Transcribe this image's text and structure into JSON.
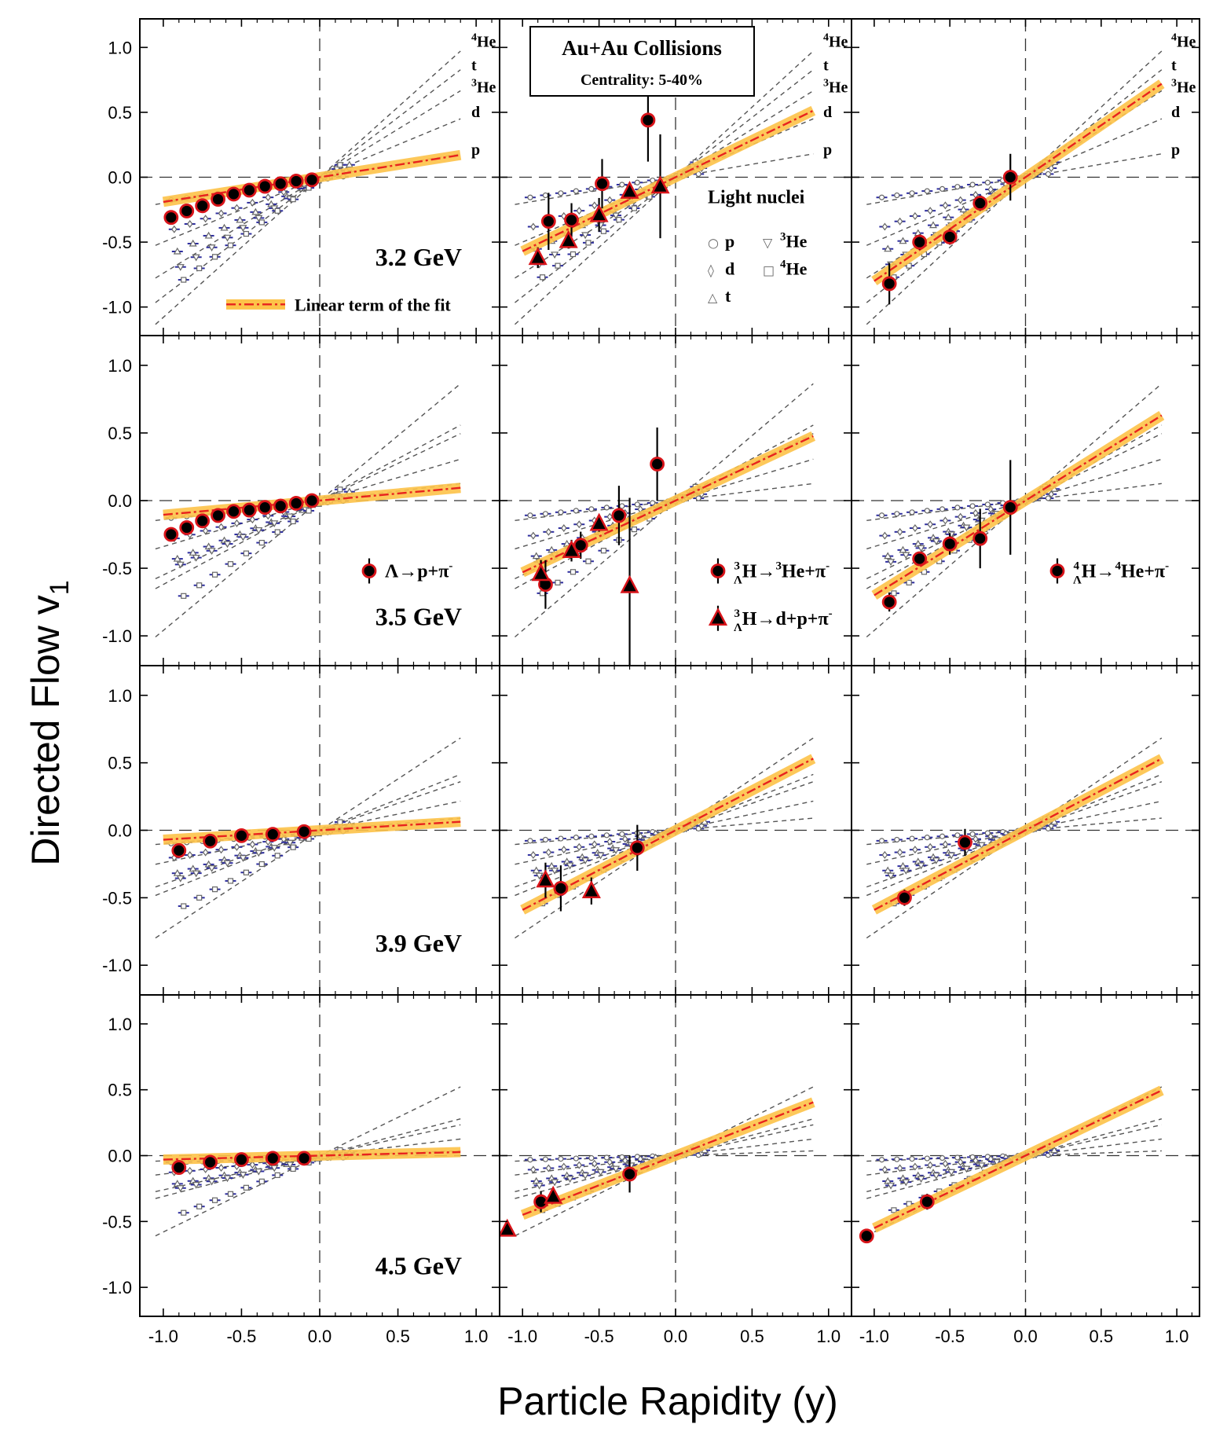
{
  "chart_data": {
    "type": "scatter",
    "xlabel": "Particle Rapidity (y)",
    "ylabel": "Directed Flow v",
    "ylabel_sub": "1",
    "xlim": [
      -1.15,
      1.15
    ],
    "ylim": [
      -1.22,
      1.22
    ],
    "x_ticks": [
      -1.0,
      -0.5,
      0.0,
      0.5,
      1.0
    ],
    "y_ticks": [
      1.0,
      0.5,
      0.0,
      -0.5,
      -1.0
    ],
    "x_tick_labels": [
      "-1.0",
      "-0.5",
      "0.0",
      "0.5",
      "1.0"
    ],
    "y_tick_labels": [
      "1.0",
      "0.5",
      "0.0",
      "-0.5",
      "-1.0"
    ],
    "header_box": {
      "title": "Au+Au Collisions",
      "subtitle": "Centrality: 5-40%"
    },
    "light_nuclei_legend": {
      "title": "Light nuclei",
      "entries": [
        {
          "symbol": "○",
          "label": "p"
        },
        {
          "symbol": "◊",
          "label": "d"
        },
        {
          "symbol": "△",
          "label": "t"
        },
        {
          "symbol": "▽",
          "label": "3He",
          "sup": "3",
          "base": "He"
        },
        {
          "symbol": "□",
          "label": "4He",
          "sup": "4",
          "base": "He"
        }
      ]
    },
    "fit_legend": "Linear term of the fit",
    "nuclei_line_labels": [
      "4He",
      "t",
      "3He",
      "d",
      "p"
    ],
    "channel_labels": [
      {
        "text": "Λ→p+π-",
        "marker": "circle"
      },
      {
        "text": "3ΛH→3He+π-",
        "marker": "circle"
      },
      {
        "text": "3ΛH→d+p+π-",
        "marker": "triangle"
      },
      {
        "text": "4ΛH→4He+π-",
        "marker": "circle"
      }
    ],
    "energies": [
      "3.2 GeV",
      "3.5 GeV",
      "3.9 GeV",
      "4.5 GeV"
    ],
    "colors": {
      "fit_band": "#fdc349",
      "fit_line": "#e8231e",
      "marker_edge": "#d9141a",
      "marker_fill": "#000000",
      "nuclei_line": "#555555",
      "nuclei_marker": "#2e2e9e"
    },
    "panels": [
      {
        "row": 0,
        "col": 0,
        "energy": "3.2 GeV",
        "fit_slope": 0.19,
        "light_nuclei_slopes": [
          0.2,
          0.5,
          0.74,
          0.92,
          1.08
        ],
        "series": [
          {
            "name": "Λ→p+π-",
            "marker": "circle",
            "points": [
              [
                -0.95,
                -0.31
              ],
              [
                -0.85,
                -0.26
              ],
              [
                -0.75,
                -0.22
              ],
              [
                -0.65,
                -0.17
              ],
              [
                -0.55,
                -0.13
              ],
              [
                -0.45,
                -0.1
              ],
              [
                -0.35,
                -0.07
              ],
              [
                -0.25,
                -0.05
              ],
              [
                -0.15,
                -0.03
              ],
              [
                -0.05,
                -0.02
              ]
            ],
            "errors": [
              0.02,
              0.02,
              0.02,
              0.02,
              0.02,
              0.02,
              0.02,
              0.02,
              0.02,
              0.05
            ]
          }
        ]
      },
      {
        "row": 0,
        "col": 1,
        "energy": "3.2 GeV",
        "fit_slope": 0.57,
        "light_nuclei_slopes": [
          0.2,
          0.5,
          0.74,
          0.92,
          1.08
        ],
        "series": [
          {
            "name": "3ΛH→3He+π-",
            "marker": "circle",
            "points": [
              [
                -0.83,
                -0.34
              ],
              [
                -0.68,
                -0.33
              ],
              [
                -0.48,
                -0.05
              ],
              [
                -0.18,
                0.44
              ]
            ],
            "errors": [
              0.22,
              0.13,
              0.19,
              0.32
            ]
          },
          {
            "name": "3ΛH→d+p+π-",
            "marker": "triangle",
            "points": [
              [
                -0.9,
                -0.62
              ],
              [
                -0.7,
                -0.49
              ],
              [
                -0.5,
                -0.29
              ],
              [
                -0.3,
                -0.11
              ],
              [
                -0.1,
                -0.07
              ]
            ],
            "errors": [
              0.08,
              0.06,
              0.13,
              0.06,
              0.4
            ]
          }
        ]
      },
      {
        "row": 0,
        "col": 2,
        "energy": "3.2 GeV",
        "fit_slope": 0.8,
        "light_nuclei_slopes": [
          0.2,
          0.5,
          0.74,
          0.92,
          1.08
        ],
        "series": [
          {
            "name": "4ΛH→4He+π-",
            "marker": "circle",
            "points": [
              [
                -0.9,
                -0.82
              ],
              [
                -0.7,
                -0.5
              ],
              [
                -0.5,
                -0.46
              ],
              [
                -0.3,
                -0.2
              ],
              [
                -0.1,
                0.0
              ]
            ],
            "errors": [
              0.16,
              0.06,
              0.06,
              0.06,
              0.18
            ]
          }
        ]
      },
      {
        "row": 1,
        "col": 0,
        "energy": "3.5 GeV",
        "fit_slope": 0.105,
        "light_nuclei_slopes": [
          0.14,
          0.34,
          0.55,
          0.62,
          0.96
        ],
        "series": [
          {
            "name": "Λ→p+π-",
            "marker": "circle",
            "points": [
              [
                -0.95,
                -0.25
              ],
              [
                -0.85,
                -0.2
              ],
              [
                -0.75,
                -0.15
              ],
              [
                -0.65,
                -0.11
              ],
              [
                -0.55,
                -0.08
              ],
              [
                -0.45,
                -0.07
              ],
              [
                -0.35,
                -0.05
              ],
              [
                -0.25,
                -0.04
              ],
              [
                -0.15,
                -0.02
              ],
              [
                -0.05,
                0.0
              ]
            ],
            "errors": [
              0.02,
              0.02,
              0.02,
              0.02,
              0.02,
              0.02,
              0.02,
              0.02,
              0.02,
              0.02
            ]
          }
        ]
      },
      {
        "row": 1,
        "col": 1,
        "energy": "3.5 GeV",
        "fit_slope": 0.53,
        "light_nuclei_slopes": [
          0.14,
          0.34,
          0.55,
          0.62,
          0.96
        ],
        "series": [
          {
            "name": "3ΛH→3He+π-",
            "marker": "circle",
            "points": [
              [
                -0.85,
                -0.62
              ],
              [
                -0.62,
                -0.33
              ],
              [
                -0.37,
                -0.11
              ],
              [
                -0.12,
                0.27
              ]
            ],
            "errors": [
              0.18,
              0.1,
              0.22,
              0.27
            ]
          },
          {
            "name": "3ΛH→d+p+π-",
            "marker": "triangle",
            "points": [
              [
                -0.88,
                -0.54
              ],
              [
                -0.68,
                -0.37
              ],
              [
                -0.5,
                -0.17
              ],
              [
                -0.3,
                -0.63
              ]
            ],
            "errors": [
              0.1,
              0.08,
              0.06,
              0.65
            ]
          }
        ]
      },
      {
        "row": 1,
        "col": 2,
        "energy": "3.5 GeV",
        "fit_slope": 0.7,
        "light_nuclei_slopes": [
          0.14,
          0.34,
          0.55,
          0.62,
          0.96
        ],
        "series": [
          {
            "name": "4ΛH→4He+π-",
            "marker": "circle",
            "points": [
              [
                -0.9,
                -0.75
              ],
              [
                -0.7,
                -0.43
              ],
              [
                -0.5,
                -0.32
              ],
              [
                -0.3,
                -0.28
              ],
              [
                -0.1,
                -0.05
              ]
            ],
            "errors": [
              0.07,
              0.05,
              0.08,
              0.22,
              0.35
            ]
          }
        ]
      },
      {
        "row": 2,
        "col": 0,
        "energy": "3.9 GeV",
        "fit_slope": 0.07,
        "light_nuclei_slopes": [
          0.1,
          0.24,
          0.4,
          0.46,
          0.76
        ],
        "series": [
          {
            "name": "Λ→p+π-",
            "marker": "circle",
            "points": [
              [
                -0.9,
                -0.15
              ],
              [
                -0.7,
                -0.08
              ],
              [
                -0.5,
                -0.04
              ],
              [
                -0.3,
                -0.03
              ],
              [
                -0.1,
                -0.01
              ]
            ],
            "errors": [
              0.02,
              0.02,
              0.02,
              0.02,
              0.02
            ]
          }
        ]
      },
      {
        "row": 2,
        "col": 1,
        "energy": "3.9 GeV",
        "fit_slope": 0.59,
        "light_nuclei_slopes": [
          0.1,
          0.24,
          0.4,
          0.46,
          0.76
        ],
        "series": [
          {
            "name": "3ΛH→3He+π-",
            "marker": "circle",
            "points": [
              [
                -0.75,
                -0.43
              ],
              [
                -0.25,
                -0.13
              ]
            ],
            "errors": [
              0.17,
              0.17
            ]
          },
          {
            "name": "3ΛH→d+p+π-",
            "marker": "triangle",
            "points": [
              [
                -0.85,
                -0.37
              ],
              [
                -0.55,
                -0.45
              ]
            ],
            "errors": [
              0.13,
              0.1
            ]
          }
        ]
      },
      {
        "row": 2,
        "col": 2,
        "energy": "3.9 GeV",
        "fit_slope": 0.59,
        "light_nuclei_slopes": [
          0.1,
          0.24,
          0.4,
          0.46,
          0.76
        ],
        "series": [
          {
            "name": "4ΛH→4He+π-",
            "marker": "circle",
            "points": [
              [
                -0.8,
                -0.5
              ],
              [
                -0.4,
                -0.09
              ]
            ],
            "errors": [
              0.06,
              0.1
            ]
          }
        ]
      },
      {
        "row": 3,
        "col": 0,
        "energy": "4.5 GeV",
        "fit_slope": 0.03,
        "light_nuclei_slopes": [
          0.04,
          0.14,
          0.26,
          0.31,
          0.58
        ],
        "series": [
          {
            "name": "Λ→p+π-",
            "marker": "circle",
            "points": [
              [
                -0.9,
                -0.09
              ],
              [
                -0.7,
                -0.05
              ],
              [
                -0.5,
                -0.03
              ],
              [
                -0.3,
                -0.02
              ],
              [
                -0.1,
                -0.02
              ]
            ],
            "errors": [
              0.02,
              0.02,
              0.02,
              0.02,
              0.02
            ]
          }
        ]
      },
      {
        "row": 3,
        "col": 1,
        "energy": "4.5 GeV",
        "fit_slope": 0.45,
        "light_nuclei_slopes": [
          0.04,
          0.14,
          0.26,
          0.31,
          0.58
        ],
        "series": [
          {
            "name": "3ΛH→3He+π-",
            "marker": "circle",
            "points": [
              [
                -0.88,
                -0.35
              ],
              [
                -0.3,
                -0.14
              ]
            ],
            "errors": [
              0.08,
              0.14
            ]
          },
          {
            "name": "3ΛH→d+p+π-",
            "marker": "triangle",
            "points": [
              [
                -1.1,
                -0.56
              ],
              [
                -0.8,
                -0.31
              ]
            ],
            "errors": [
              0.03,
              0.03
            ]
          }
        ]
      },
      {
        "row": 3,
        "col": 2,
        "energy": "4.5 GeV",
        "fit_slope": 0.55,
        "light_nuclei_slopes": [
          0.04,
          0.14,
          0.26,
          0.31,
          0.58
        ],
        "series": [
          {
            "name": "4ΛH→4He+π-",
            "marker": "circle",
            "points": [
              [
                -1.05,
                -0.61
              ],
              [
                -0.65,
                -0.35
              ]
            ],
            "errors": [
              0.02,
              0.06
            ]
          }
        ]
      }
    ]
  }
}
